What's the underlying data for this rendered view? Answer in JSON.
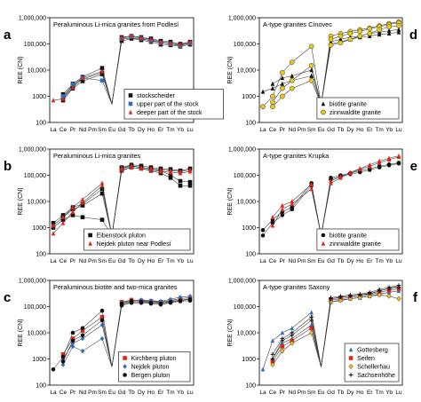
{
  "figure": {
    "elements": [
      "La",
      "Ce",
      "Pr",
      "Nd",
      "Pm",
      "Sm",
      "Eu",
      "Gd",
      "Tb",
      "Dy",
      "Ho",
      "Er",
      "Tm",
      "Yb",
      "Lu"
    ],
    "y_ticks": [
      "100",
      "1000",
      "10,000",
      "100,000",
      "1,000,000"
    ],
    "y_label": "REE (CN)"
  },
  "chart_data": [
    {
      "type": "line",
      "panel": "a",
      "title": "Peraluminous Li-mica granites from Podlesí",
      "ylabel": "REE (CN)",
      "yscale": "log",
      "ylim": [
        100,
        1000000
      ],
      "legend": "bottom-left",
      "series": [
        {
          "name": "stockscheider",
          "marker": "square",
          "color": "#111111",
          "lines": [
            [
              null,
              900,
              2500,
              4500,
              null,
              8000,
              null,
              150000,
              170000,
              150000,
              140000,
              110000,
              100000,
              90000,
              110000
            ],
            [
              null,
              1200,
              3000,
              5500,
              null,
              12000,
              null,
              180000,
              200000,
              180000,
              160000,
              130000,
              120000,
              100000,
              120000
            ],
            [
              null,
              700,
              2000,
              3800,
              null,
              7000,
              null,
              130000,
              160000,
              140000,
              120000,
              95000,
              90000,
              80000,
              95000
            ]
          ]
        },
        {
          "name": "upper part of the stock",
          "marker": "square",
          "color": "#2f6fc2",
          "lines": [
            [
              null,
              1000,
              2800,
              5000,
              null,
              4000,
              null,
              160000,
              190000,
              160000,
              130000,
              110000,
              100000,
              85000,
              105000
            ]
          ]
        },
        {
          "name": "deeper part of the stock",
          "marker": "triangle",
          "color": "#e0251b",
          "lines": [
            [
              700,
              800,
              2200,
              5000,
              null,
              9000,
              null,
              170000,
              210000,
              170000,
              150000,
              120000,
              110000,
              95000,
              120000
            ]
          ]
        }
      ]
    },
    {
      "type": "line",
      "panel": "b",
      "title": "Peraluminous Li-mica granites",
      "ylabel": "REE (CN)",
      "yscale": "log",
      "ylim": [
        100,
        1000000
      ],
      "legend": "bottom-right",
      "series": [
        {
          "name": "Eibenstock pluton",
          "marker": "square",
          "color": "#111111",
          "lines": [
            [
              1000,
              2000,
              3000,
              2500,
              null,
              2000,
              null,
              150000,
              200000,
              180000,
              150000,
              120000,
              80000,
              40000,
              40000
            ],
            [
              1500,
              3000,
              6000,
              8000,
              null,
              30000,
              null,
              180000,
              220000,
              200000,
              180000,
              150000,
              100000,
              60000,
              55000
            ],
            [
              null,
              2500,
              5000,
              7000,
              null,
              20000,
              null,
              200000,
              250000,
              230000,
              200000,
              180000,
              170000,
              150000,
              180000
            ]
          ]
        },
        {
          "name": "Nejdek pluton near Podlesí",
          "marker": "triangle",
          "color": "#e0251b",
          "lines": [
            [
              600,
              1500,
              4000,
              9000,
              null,
              40000,
              null,
              160000,
              200000,
              180000,
              160000,
              140000,
              130000,
              120000,
              140000
            ],
            [
              1200,
              2500,
              6000,
              12000,
              null,
              50000,
              null,
              190000,
              230000,
              200000,
              180000,
              160000,
              150000,
              140000,
              160000
            ]
          ]
        }
      ]
    },
    {
      "type": "line",
      "panel": "c",
      "title": "Peraluminous biotite and two-mica granites",
      "ylabel": "REE (CN)",
      "yscale": "log",
      "ylim": [
        100,
        1000000
      ],
      "legend": "bottom-right",
      "series": [
        {
          "name": "Kirchberg pluton",
          "marker": "square",
          "color": "#e0251b",
          "lines": [
            [
              null,
              1500,
              6000,
              12000,
              null,
              40000,
              null,
              150000,
              180000,
              170000,
              160000,
              150000,
              170000,
              200000,
              220000
            ]
          ]
        },
        {
          "name": "Nejdek pluton",
          "marker": "diamond",
          "color": "#2f6fc2",
          "lines": [
            [
              null,
              600,
              3000,
              2000,
              null,
              6000,
              null,
              120000,
              150000,
              160000,
              150000,
              140000,
              160000,
              180000,
              200000
            ],
            [
              null,
              1000,
              4000,
              6000,
              null,
              20000,
              null,
              140000,
              170000,
              180000,
              170000,
              160000,
              190000,
              230000,
              250000
            ]
          ]
        },
        {
          "name": "Bergen pluton",
          "marker": "circle",
          "color": "#111111",
          "lines": [
            [
              400,
              1200,
              10000,
              15000,
              null,
              70000,
              null,
              130000,
              160000,
              150000,
              140000,
              130000,
              150000,
              170000,
              190000
            ],
            [
              null,
              800,
              5000,
              8000,
              null,
              30000,
              null,
              110000,
              140000,
              140000,
              130000,
              120000,
              140000,
              160000,
              170000
            ]
          ]
        }
      ]
    },
    {
      "type": "line",
      "panel": "d",
      "title": "A-type granites Cínovec",
      "ylabel": "REE (CN)",
      "yscale": "log",
      "ylim": [
        100,
        1000000
      ],
      "legend": "bottom-right",
      "series": [
        {
          "name": "biotite granite",
          "marker": "triangle",
          "color": "#111111",
          "lines": [
            [
              1500,
              2000,
              3000,
              4000,
              null,
              6000,
              null,
              100000,
              120000,
              150000,
              180000,
              200000,
              230000,
              250000,
              280000
            ],
            [
              null,
              3000,
              5000,
              6000,
              null,
              10000,
              null,
              120000,
              150000,
              180000,
              200000,
              250000,
              280000,
              320000,
              350000
            ]
          ]
        },
        {
          "name": "zinnwaldite granite",
          "marker": "circle-open",
          "color": "#e8c81a",
          "lines": [
            [
              400,
              1000,
              8000,
              20000,
              null,
              80000,
              null,
              200000,
              250000,
              300000,
              350000,
              400000,
              500000,
              600000,
              700000
            ],
            [
              null,
              600,
              2000,
              4000,
              null,
              15000,
              null,
              150000,
              200000,
              250000,
              300000,
              380000,
              450000,
              550000,
              650000
            ],
            [
              null,
              400,
              1000,
              2000,
              null,
              4000,
              null,
              90000,
              110000,
              150000,
              200000,
              250000,
              350000,
              450000,
              500000
            ]
          ]
        }
      ]
    },
    {
      "type": "line",
      "panel": "e",
      "title": "A-type granites Krupka",
      "ylabel": "REE (CN)",
      "yscale": "log",
      "ylim": [
        100,
        1000000
      ],
      "legend": "bottom-right",
      "series": [
        {
          "name": "biotite granite",
          "marker": "circle",
          "color": "#111111",
          "lines": [
            [
              800,
              2000,
              4000,
              6000,
              null,
              50000,
              null,
              80000,
              100000,
              120000,
              150000,
              180000,
              220000,
              260000,
              300000
            ],
            [
              500,
              1500,
              3000,
              5000,
              null,
              40000,
              null,
              70000,
              90000,
              110000,
              130000,
              160000,
              200000,
              240000,
              280000
            ]
          ]
        },
        {
          "name": "zinnwaldite granite",
          "marker": "triangle",
          "color": "#e0251b",
          "lines": [
            [
              null,
              2500,
              7000,
              10000,
              null,
              45000,
              null,
              60000,
              90000,
              130000,
              180000,
              250000,
              350000,
              450000,
              550000
            ],
            [
              null,
              1200,
              5000,
              8000,
              null,
              30000,
              null,
              50000,
              80000,
              120000,
              170000,
              220000,
              300000,
              400000,
              500000
            ]
          ]
        }
      ]
    },
    {
      "type": "line",
      "panel": "f",
      "title": "A-type granites Saxony",
      "ylabel": "REE (CN)",
      "yscale": "log",
      "ylim": [
        100,
        1000000
      ],
      "legend": "bottom-right",
      "series": [
        {
          "name": "Gottesberg",
          "marker": "triangle",
          "color": "#2f6fc2",
          "lines": [
            [
              400,
              5000,
              10000,
              15000,
              null,
              60000,
              null,
              200000,
              220000,
              250000,
              280000,
              300000,
              400000,
              500000,
              600000
            ],
            [
              null,
              1000,
              4000,
              6000,
              null,
              20000,
              null,
              150000,
              180000,
              200000,
              220000,
              250000,
              300000,
              350000,
              400000
            ]
          ]
        },
        {
          "name": "Seifen",
          "marker": "square",
          "color": "#e0251b",
          "lines": [
            [
              null,
              800,
              3000,
              5000,
              null,
              15000,
              null,
              180000,
              200000,
              220000,
              250000,
              280000,
              350000,
              420000,
              480000
            ]
          ]
        },
        {
          "name": "Schellerhau",
          "marker": "diamond-open",
          "color": "#e8c81a",
          "lines": [
            [
              null,
              600,
              2000,
              4000,
              null,
              10000,
              null,
              150000,
              170000,
              200000,
              220000,
              250000,
              280000,
              250000,
              200000
            ]
          ]
        },
        {
          "name": "Sachsenhöhe",
          "marker": "plus",
          "color": "#111111",
          "lines": [
            [
              null,
              1500,
              6000,
              10000,
              null,
              40000,
              null,
              220000,
              250000,
              280000,
              300000,
              350000,
              450000,
              550000,
              650000
            ],
            [
              null,
              1000,
              5000,
              8000,
              null,
              30000,
              null,
              200000,
              230000,
              250000,
              280000,
              320000,
              400000,
              480000,
              550000
            ]
          ]
        }
      ]
    }
  ]
}
